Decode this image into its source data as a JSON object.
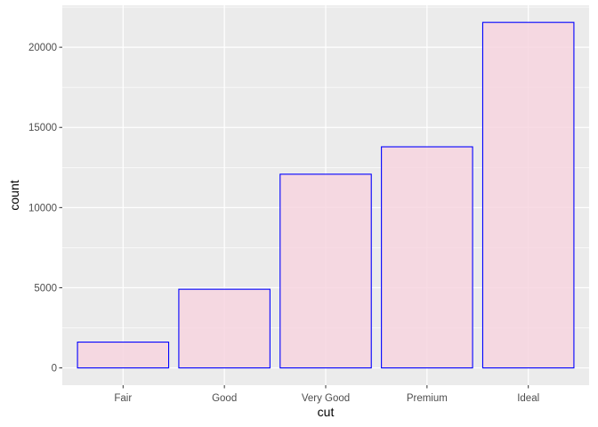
{
  "chart_data": {
    "type": "bar",
    "title": "",
    "xlabel": "cut",
    "ylabel": "count",
    "categories": [
      "Fair",
      "Good",
      "Very Good",
      "Premium",
      "Ideal"
    ],
    "values": [
      1610,
      4906,
      12082,
      13791,
      21551
    ],
    "ylim": [
      0,
      22600
    ],
    "yticks": [
      0,
      5000,
      10000,
      15000,
      20000
    ],
    "grid": true,
    "colors": {
      "panel_background": "#ebebeb",
      "grid_major": "#ffffff",
      "bar_fill": "#f7d5df",
      "bar_outline": "#0000ff"
    }
  }
}
